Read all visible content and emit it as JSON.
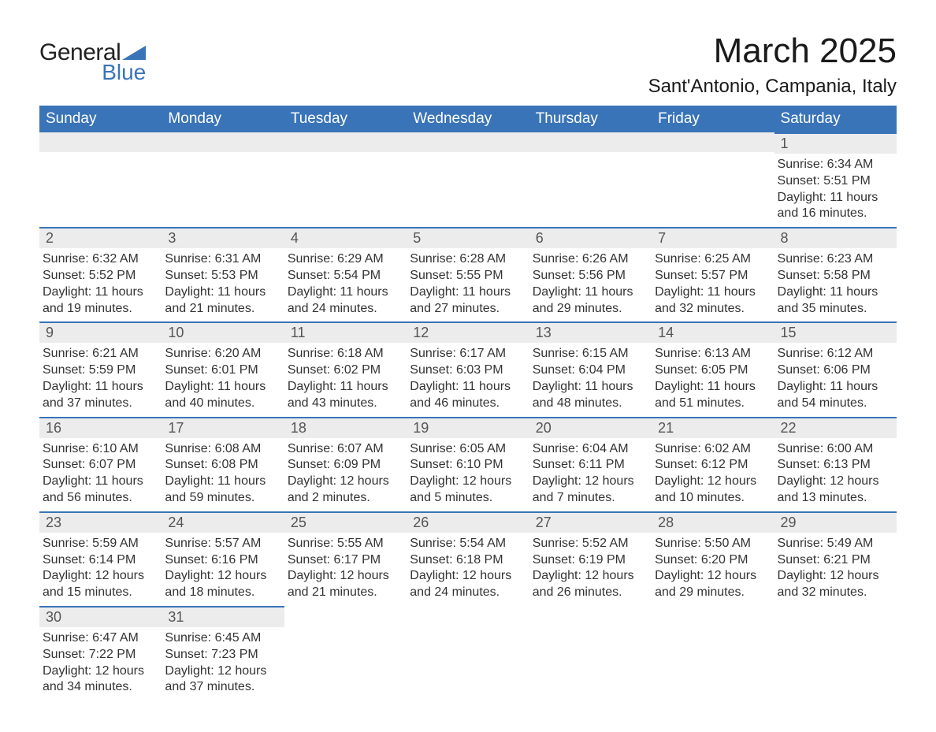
{
  "brand": {
    "word1": "General",
    "word2": "Blue",
    "tri_color": "#3a74b8"
  },
  "title": "March 2025",
  "location": "Sant'Antonio, Campania, Italy",
  "colors": {
    "header_bg": "#3a74b8",
    "header_fg": "#ffffff",
    "daynum_bg": "#ececec",
    "row_border": "#3a74b8",
    "text": "#333333"
  },
  "weekdays": [
    "Sunday",
    "Monday",
    "Tuesday",
    "Wednesday",
    "Thursday",
    "Friday",
    "Saturday"
  ],
  "weeks": [
    [
      null,
      null,
      null,
      null,
      null,
      null,
      {
        "n": "1",
        "sr": "Sunrise: 6:34 AM",
        "ss": "Sunset: 5:51 PM",
        "dl": "Daylight: 11 hours and 16 minutes."
      }
    ],
    [
      {
        "n": "2",
        "sr": "Sunrise: 6:32 AM",
        "ss": "Sunset: 5:52 PM",
        "dl": "Daylight: 11 hours and 19 minutes."
      },
      {
        "n": "3",
        "sr": "Sunrise: 6:31 AM",
        "ss": "Sunset: 5:53 PM",
        "dl": "Daylight: 11 hours and 21 minutes."
      },
      {
        "n": "4",
        "sr": "Sunrise: 6:29 AM",
        "ss": "Sunset: 5:54 PM",
        "dl": "Daylight: 11 hours and 24 minutes."
      },
      {
        "n": "5",
        "sr": "Sunrise: 6:28 AM",
        "ss": "Sunset: 5:55 PM",
        "dl": "Daylight: 11 hours and 27 minutes."
      },
      {
        "n": "6",
        "sr": "Sunrise: 6:26 AM",
        "ss": "Sunset: 5:56 PM",
        "dl": "Daylight: 11 hours and 29 minutes."
      },
      {
        "n": "7",
        "sr": "Sunrise: 6:25 AM",
        "ss": "Sunset: 5:57 PM",
        "dl": "Daylight: 11 hours and 32 minutes."
      },
      {
        "n": "8",
        "sr": "Sunrise: 6:23 AM",
        "ss": "Sunset: 5:58 PM",
        "dl": "Daylight: 11 hours and 35 minutes."
      }
    ],
    [
      {
        "n": "9",
        "sr": "Sunrise: 6:21 AM",
        "ss": "Sunset: 5:59 PM",
        "dl": "Daylight: 11 hours and 37 minutes."
      },
      {
        "n": "10",
        "sr": "Sunrise: 6:20 AM",
        "ss": "Sunset: 6:01 PM",
        "dl": "Daylight: 11 hours and 40 minutes."
      },
      {
        "n": "11",
        "sr": "Sunrise: 6:18 AM",
        "ss": "Sunset: 6:02 PM",
        "dl": "Daylight: 11 hours and 43 minutes."
      },
      {
        "n": "12",
        "sr": "Sunrise: 6:17 AM",
        "ss": "Sunset: 6:03 PM",
        "dl": "Daylight: 11 hours and 46 minutes."
      },
      {
        "n": "13",
        "sr": "Sunrise: 6:15 AM",
        "ss": "Sunset: 6:04 PM",
        "dl": "Daylight: 11 hours and 48 minutes."
      },
      {
        "n": "14",
        "sr": "Sunrise: 6:13 AM",
        "ss": "Sunset: 6:05 PM",
        "dl": "Daylight: 11 hours and 51 minutes."
      },
      {
        "n": "15",
        "sr": "Sunrise: 6:12 AM",
        "ss": "Sunset: 6:06 PM",
        "dl": "Daylight: 11 hours and 54 minutes."
      }
    ],
    [
      {
        "n": "16",
        "sr": "Sunrise: 6:10 AM",
        "ss": "Sunset: 6:07 PM",
        "dl": "Daylight: 11 hours and 56 minutes."
      },
      {
        "n": "17",
        "sr": "Sunrise: 6:08 AM",
        "ss": "Sunset: 6:08 PM",
        "dl": "Daylight: 11 hours and 59 minutes."
      },
      {
        "n": "18",
        "sr": "Sunrise: 6:07 AM",
        "ss": "Sunset: 6:09 PM",
        "dl": "Daylight: 12 hours and 2 minutes."
      },
      {
        "n": "19",
        "sr": "Sunrise: 6:05 AM",
        "ss": "Sunset: 6:10 PM",
        "dl": "Daylight: 12 hours and 5 minutes."
      },
      {
        "n": "20",
        "sr": "Sunrise: 6:04 AM",
        "ss": "Sunset: 6:11 PM",
        "dl": "Daylight: 12 hours and 7 minutes."
      },
      {
        "n": "21",
        "sr": "Sunrise: 6:02 AM",
        "ss": "Sunset: 6:12 PM",
        "dl": "Daylight: 12 hours and 10 minutes."
      },
      {
        "n": "22",
        "sr": "Sunrise: 6:00 AM",
        "ss": "Sunset: 6:13 PM",
        "dl": "Daylight: 12 hours and 13 minutes."
      }
    ],
    [
      {
        "n": "23",
        "sr": "Sunrise: 5:59 AM",
        "ss": "Sunset: 6:14 PM",
        "dl": "Daylight: 12 hours and 15 minutes."
      },
      {
        "n": "24",
        "sr": "Sunrise: 5:57 AM",
        "ss": "Sunset: 6:16 PM",
        "dl": "Daylight: 12 hours and 18 minutes."
      },
      {
        "n": "25",
        "sr": "Sunrise: 5:55 AM",
        "ss": "Sunset: 6:17 PM",
        "dl": "Daylight: 12 hours and 21 minutes."
      },
      {
        "n": "26",
        "sr": "Sunrise: 5:54 AM",
        "ss": "Sunset: 6:18 PM",
        "dl": "Daylight: 12 hours and 24 minutes."
      },
      {
        "n": "27",
        "sr": "Sunrise: 5:52 AM",
        "ss": "Sunset: 6:19 PM",
        "dl": "Daylight: 12 hours and 26 minutes."
      },
      {
        "n": "28",
        "sr": "Sunrise: 5:50 AM",
        "ss": "Sunset: 6:20 PM",
        "dl": "Daylight: 12 hours and 29 minutes."
      },
      {
        "n": "29",
        "sr": "Sunrise: 5:49 AM",
        "ss": "Sunset: 6:21 PM",
        "dl": "Daylight: 12 hours and 32 minutes."
      }
    ],
    [
      {
        "n": "30",
        "sr": "Sunrise: 6:47 AM",
        "ss": "Sunset: 7:22 PM",
        "dl": "Daylight: 12 hours and 34 minutes."
      },
      {
        "n": "31",
        "sr": "Sunrise: 6:45 AM",
        "ss": "Sunset: 7:23 PM",
        "dl": "Daylight: 12 hours and 37 minutes."
      },
      null,
      null,
      null,
      null,
      null
    ]
  ]
}
